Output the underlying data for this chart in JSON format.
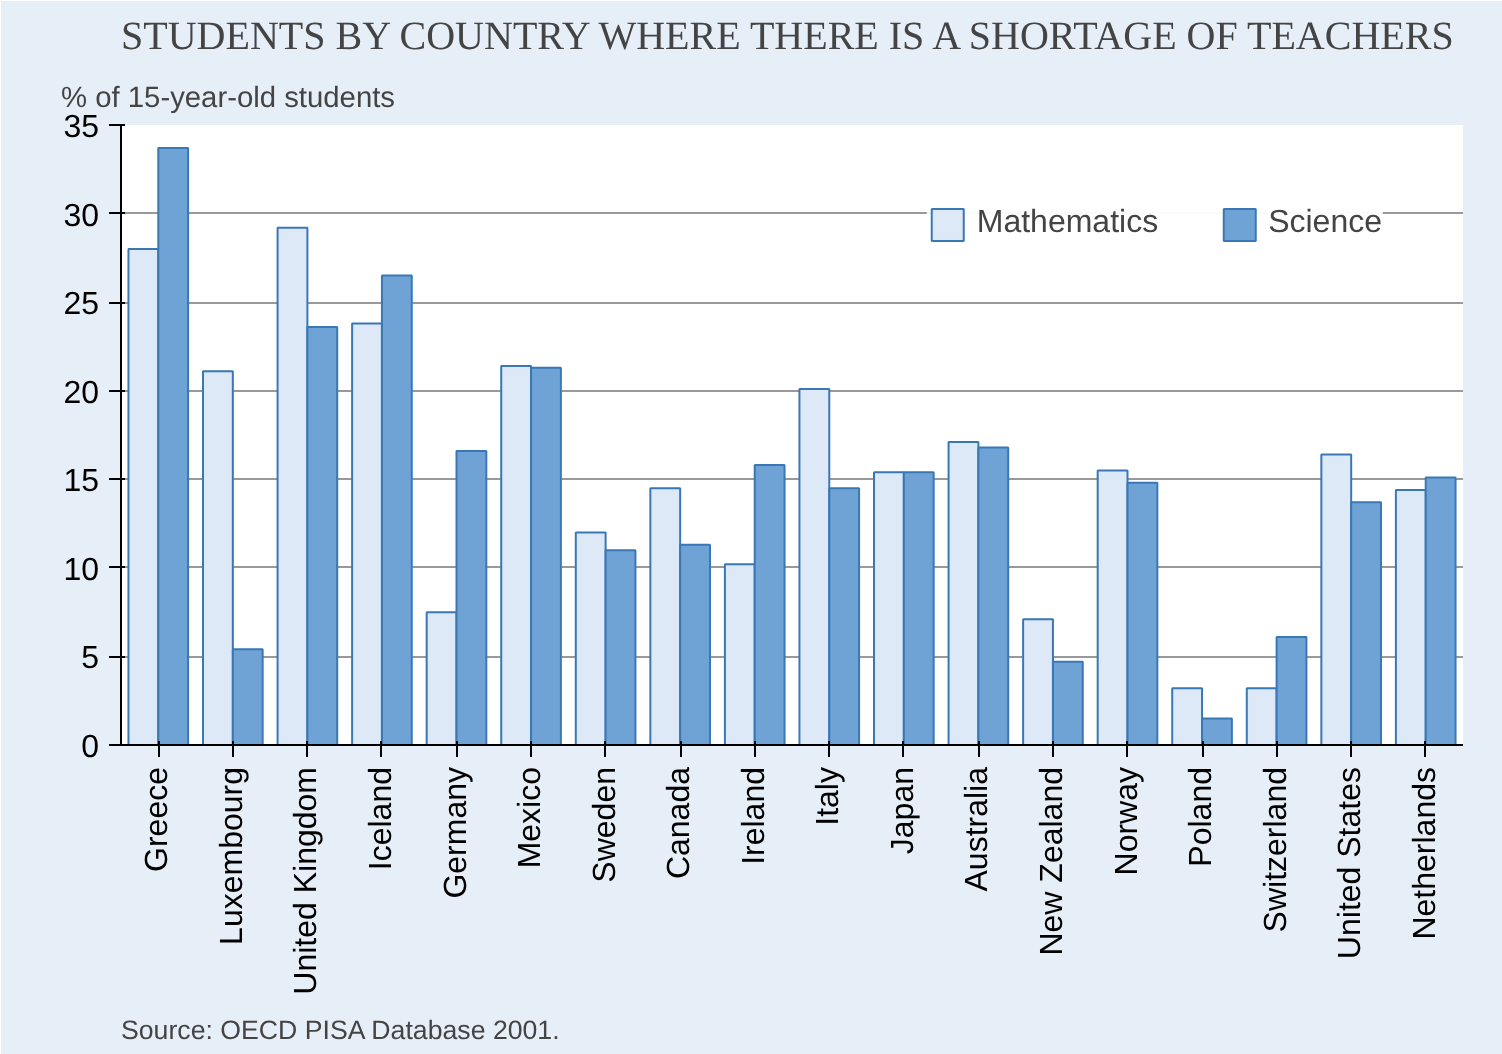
{
  "chart_data": {
    "type": "bar",
    "title": "STUDENTS BY COUNTRY WHERE THERE IS A SHORTAGE OF TEACHERS",
    "ylabel": "% of 15-year-old students",
    "categories": [
      "Greece",
      "Luxembourg",
      "United Kingdom",
      "Iceland",
      "Germany",
      "Mexico",
      "Sweden",
      "Canada",
      "Ireland",
      "Italy",
      "Japan",
      "Australia",
      "New Zealand",
      "Norway",
      "Poland",
      "Switzerland",
      "United States",
      "Netherlands"
    ],
    "series": [
      {
        "name": "Mathematics",
        "color": "#dde9f6",
        "values": [
          28.0,
          21.1,
          29.2,
          23.8,
          7.5,
          21.4,
          12.0,
          14.5,
          10.2,
          20.1,
          15.4,
          17.1,
          7.1,
          15.5,
          3.2,
          3.2,
          16.4,
          14.4
        ]
      },
      {
        "name": "Science",
        "color": "#6fa3d6",
        "values": [
          33.7,
          5.4,
          23.6,
          26.5,
          16.6,
          21.3,
          11.0,
          11.3,
          15.8,
          14.5,
          15.4,
          16.8,
          4.7,
          14.8,
          1.5,
          6.1,
          13.7,
          15.1
        ]
      }
    ],
    "ylim": [
      0,
      35
    ],
    "yticks": [
      0,
      5,
      10,
      15,
      20,
      25,
      30,
      35
    ],
    "grid": "y",
    "legend": "top right",
    "annotations": [
      "Source: OECD PISA Database 2001."
    ]
  }
}
